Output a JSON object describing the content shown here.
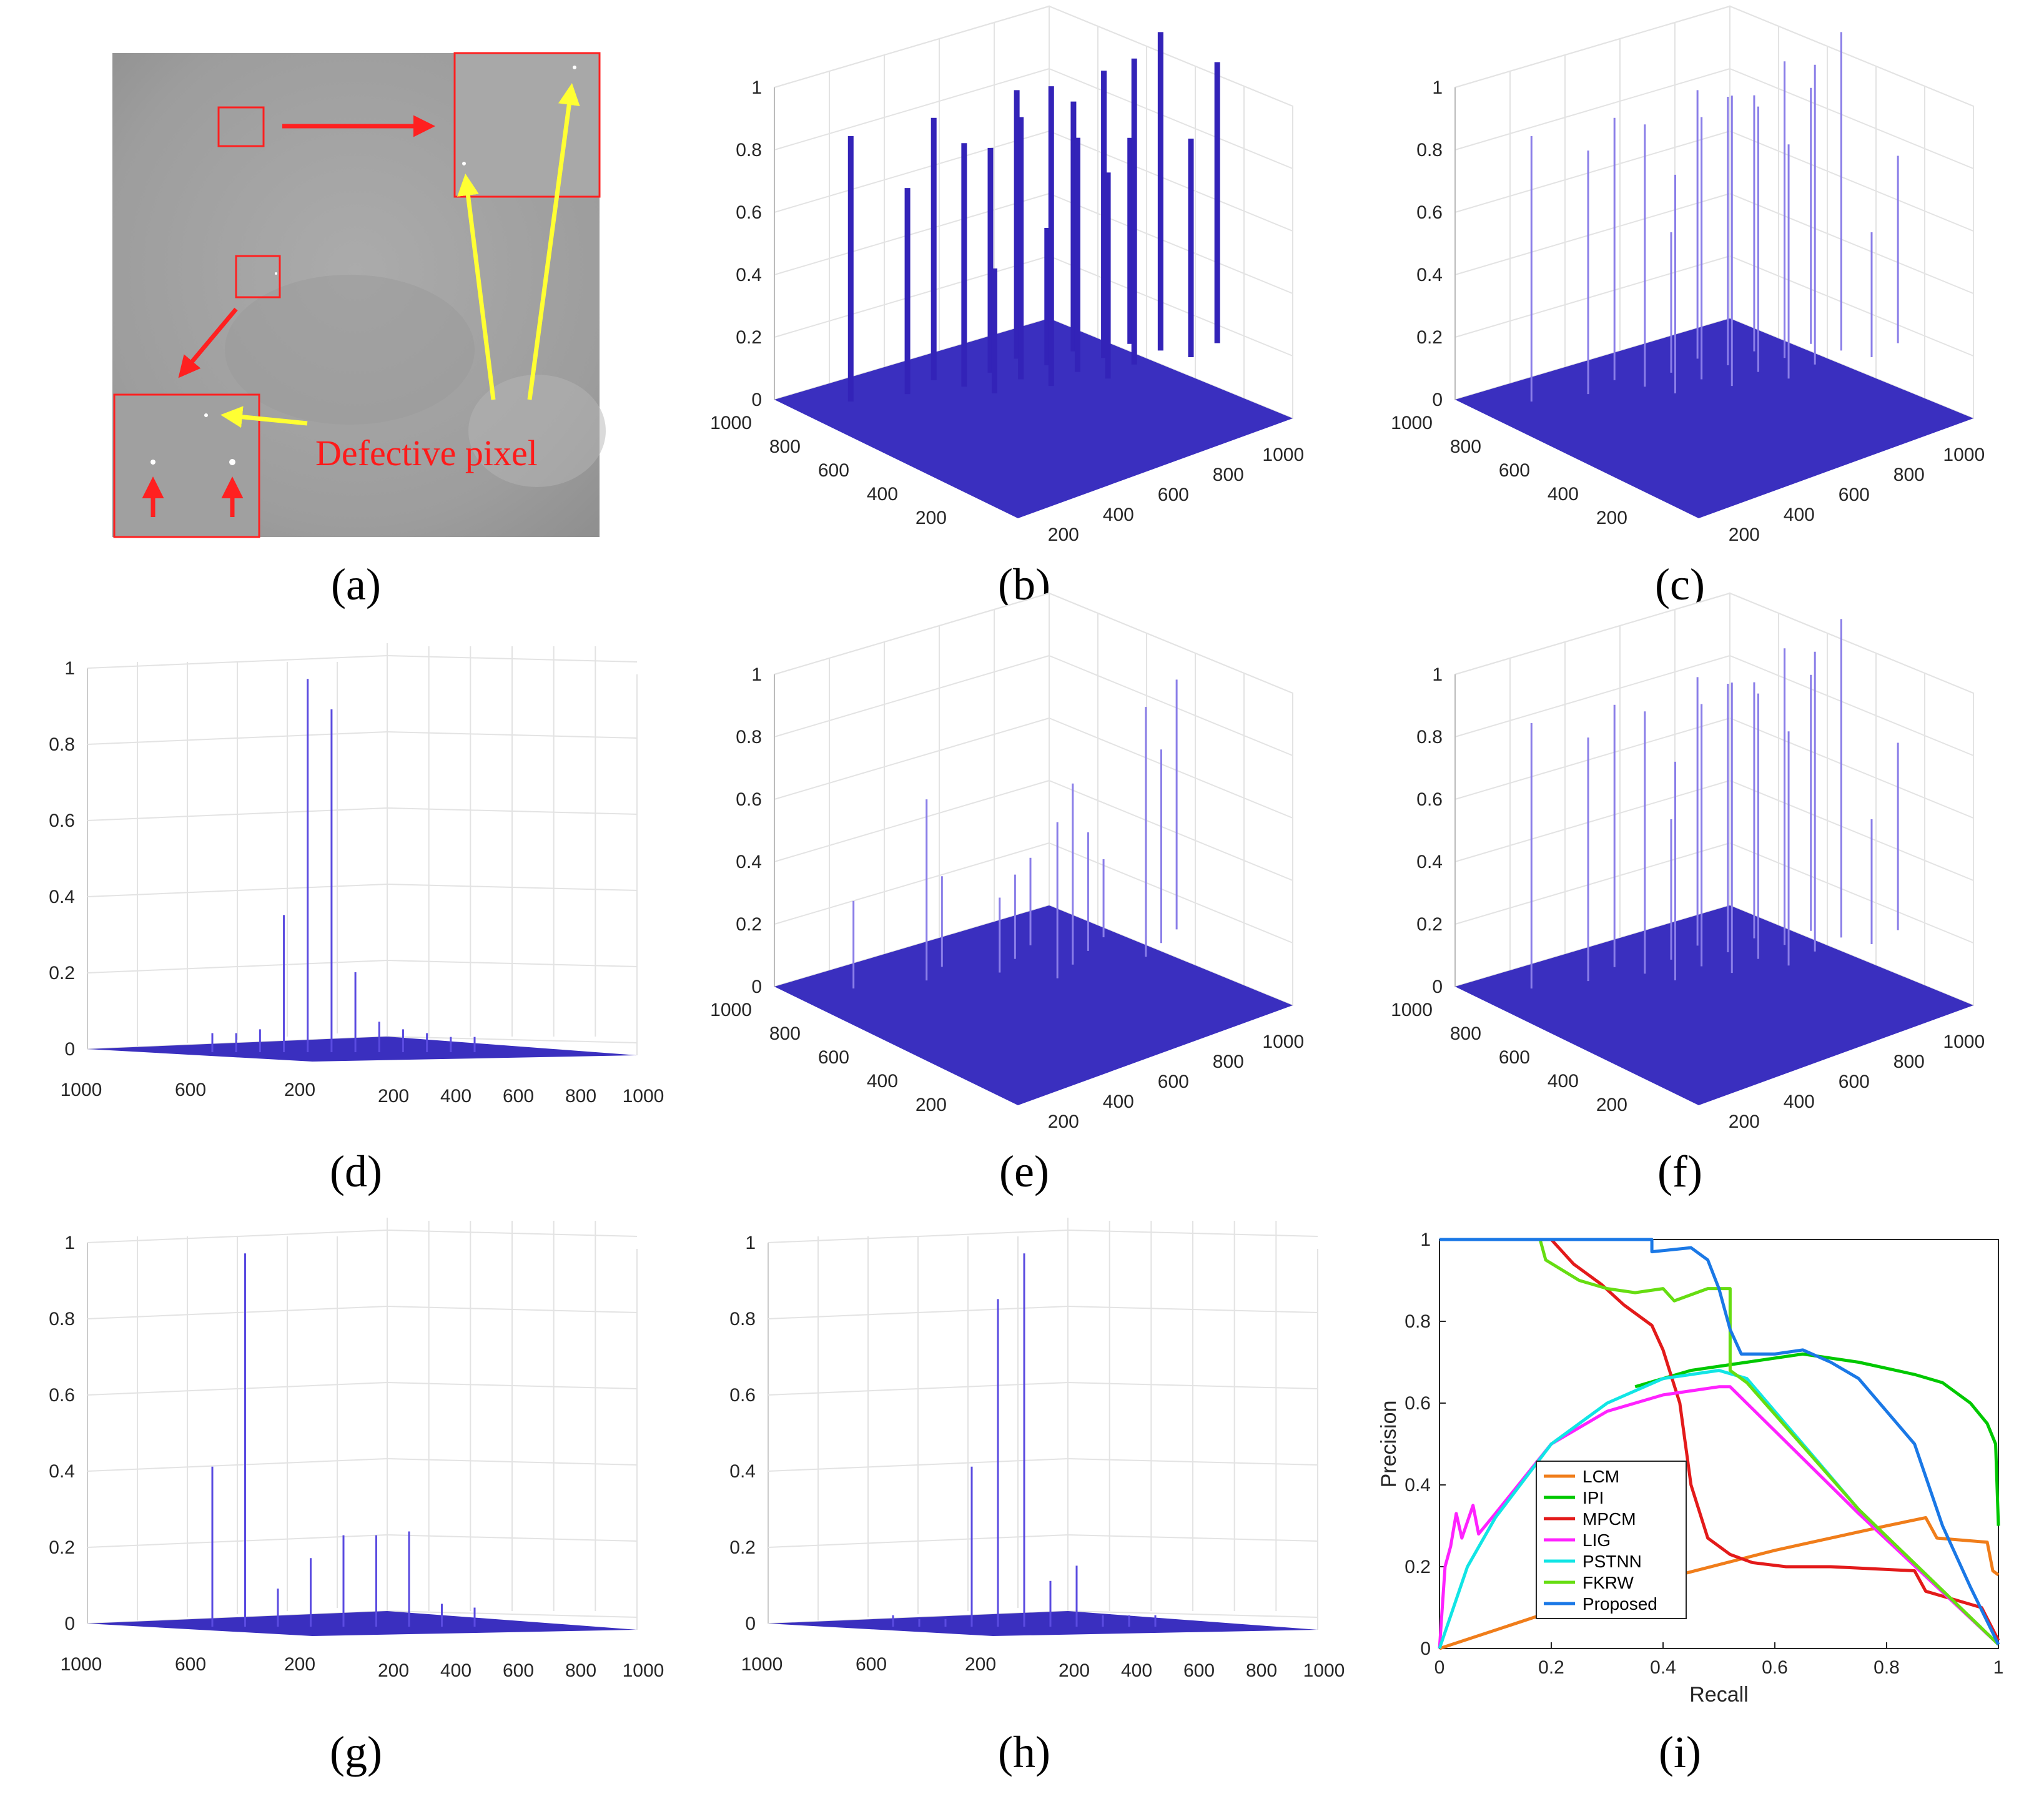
{
  "figure": {
    "annotation": "Defective pixel",
    "colors": {
      "surface": "#3a2fbf",
      "spike": "#4a3cd8",
      "spike_light": "#8a7ee8",
      "annotation_red": "#ff2020",
      "annotation_yellow": "#ffff33",
      "grid": "#e3e3e3",
      "axis": "#262626"
    }
  },
  "chart_data": [
    {
      "id": "a",
      "caption": "(a)",
      "type": "other",
      "annotation": "Defective pixel"
    },
    {
      "id": "b",
      "caption": "(b)",
      "type": "surface3d",
      "zticks": [
        "0",
        "0.2",
        "0.4",
        "0.6",
        "0.8",
        "1"
      ],
      "yticks": [
        "1000",
        "800",
        "600",
        "400",
        "200"
      ],
      "xticks": [
        "200",
        "400",
        "600",
        "800",
        "1000"
      ],
      "spikes": [
        0.85,
        0.84,
        0.86,
        0.66,
        0.72,
        0.8,
        0.78,
        0.44,
        0.66,
        0.84,
        0.92,
        0.4,
        0.75,
        1.02,
        0.96,
        0.98,
        0.9,
        0.66,
        0.7
      ]
    },
    {
      "id": "c",
      "caption": "(c)",
      "type": "surface3d",
      "zticks": [
        "0",
        "0.2",
        "0.4",
        "0.6",
        "0.8",
        "1"
      ],
      "yticks": [
        "1000",
        "800",
        "600",
        "400",
        "200"
      ],
      "xticks": [
        "200",
        "400",
        "600",
        "800",
        "1000"
      ],
      "spikes": [
        0.85,
        0.84,
        0.86,
        0.78,
        0.45,
        0.82,
        0.84,
        0.86,
        0.82,
        0.84,
        0.95,
        0.7,
        0.85,
        1.02,
        0.93,
        0.96,
        0.6,
        0.75,
        0.4
      ]
    },
    {
      "id": "d",
      "caption": "(d)",
      "type": "surface3d",
      "zticks": [
        "0",
        "0.2",
        "0.4",
        "0.6",
        "0.8",
        "1"
      ],
      "yticks": [
        "1000",
        "600",
        "200"
      ],
      "xticks": [
        "200",
        "400",
        "600",
        "800",
        "1000"
      ],
      "spikes": [
        0.05,
        0.05,
        0.06,
        0.36,
        0.98,
        0.9,
        0.21,
        0.08,
        0.06,
        0.05,
        0.04,
        0.04
      ]
    },
    {
      "id": "e",
      "caption": "(e)",
      "type": "surface3d",
      "zticks": [
        "0",
        "0.2",
        "0.4",
        "0.6",
        "0.8",
        "1"
      ],
      "yticks": [
        "1000",
        "800",
        "600",
        "400",
        "200"
      ],
      "xticks": [
        "200",
        "400",
        "600",
        "800",
        "1000"
      ],
      "spikes": [
        0.28,
        0.29,
        0.28,
        0.58,
        0.27,
        0.25,
        0.24,
        0.38,
        0.8,
        0.58,
        0.62,
        0.5,
        0.8
      ]
    },
    {
      "id": "f",
      "caption": "(f)",
      "type": "surface3d",
      "zticks": [
        "0",
        "0.2",
        "0.4",
        "0.6",
        "0.8",
        "1"
      ],
      "yticks": [
        "1000",
        "800",
        "600",
        "400",
        "200"
      ],
      "xticks": [
        "200",
        "400",
        "600",
        "800",
        "1000"
      ],
      "spikes": [
        0.85,
        0.84,
        0.86,
        0.78,
        0.45,
        0.82,
        0.84,
        0.86,
        0.82,
        0.84,
        0.95,
        0.7,
        0.85,
        1.02,
        0.93,
        0.96,
        0.6,
        0.75,
        0.4
      ]
    },
    {
      "id": "g",
      "caption": "(g)",
      "type": "surface3d",
      "zticks": [
        "0",
        "0.2",
        "0.4",
        "0.6",
        "0.8",
        "1"
      ],
      "yticks": [
        "1000",
        "600",
        "200"
      ],
      "xticks": [
        "200",
        "400",
        "600",
        "800",
        "1000"
      ],
      "spikes": [
        0.42,
        0.98,
        0.1,
        0.18,
        0.24,
        0.24,
        0.25,
        0.06,
        0.05
      ]
    },
    {
      "id": "h",
      "caption": "(h)",
      "type": "surface3d",
      "zticks": [
        "0",
        "0.2",
        "0.4",
        "0.6",
        "0.8",
        "1"
      ],
      "yticks": [
        "1000",
        "600",
        "200"
      ],
      "xticks": [
        "200",
        "400",
        "600",
        "800",
        "1000"
      ],
      "spikes": [
        0.03,
        0.02,
        0.02,
        0.42,
        0.86,
        0.98,
        0.12,
        0.16,
        0.03,
        0.03,
        0.03
      ]
    },
    {
      "id": "i",
      "caption": "(i)",
      "type": "line",
      "xlabel": "Recall",
      "ylabel": "Precision",
      "xlim": [
        0,
        1
      ],
      "ylim": [
        0,
        1
      ],
      "xticks": [
        "0",
        "0.2",
        "0.4",
        "0.6",
        "0.8",
        "1"
      ],
      "yticks": [
        "0",
        "0.2",
        "0.4",
        "0.6",
        "0.8",
        "1"
      ],
      "legend_position": "bottom-left",
      "series": [
        {
          "name": "LCM",
          "color": "#f07d1a",
          "points": [
            [
              0,
              0
            ],
            [
              0.2,
              0.09
            ],
            [
              0.4,
              0.17
            ],
            [
              0.6,
              0.24
            ],
            [
              0.8,
              0.3
            ],
            [
              0.87,
              0.32
            ],
            [
              0.89,
              0.27
            ],
            [
              0.98,
              0.26
            ],
            [
              0.99,
              0.19
            ],
            [
              1,
              0.18
            ]
          ]
        },
        {
          "name": "IPI",
          "color": "#00c800",
          "points": [
            [
              0.35,
              0.64
            ],
            [
              0.45,
              0.68
            ],
            [
              0.55,
              0.7
            ],
            [
              0.65,
              0.72
            ],
            [
              0.75,
              0.7
            ],
            [
              0.85,
              0.67
            ],
            [
              0.9,
              0.65
            ],
            [
              0.95,
              0.6
            ],
            [
              0.98,
              0.55
            ],
            [
              0.995,
              0.5
            ],
            [
              1,
              0.3
            ]
          ]
        },
        {
          "name": "MPCM",
          "color": "#e31a1a",
          "points": [
            [
              0.2,
              1
            ],
            [
              0.24,
              0.94
            ],
            [
              0.29,
              0.89
            ],
            [
              0.33,
              0.84
            ],
            [
              0.38,
              0.79
            ],
            [
              0.4,
              0.73
            ],
            [
              0.43,
              0.6
            ],
            [
              0.45,
              0.4
            ],
            [
              0.48,
              0.27
            ],
            [
              0.52,
              0.23
            ],
            [
              0.56,
              0.21
            ],
            [
              0.62,
              0.2
            ],
            [
              0.7,
              0.2
            ],
            [
              0.85,
              0.19
            ],
            [
              0.87,
              0.14
            ],
            [
              0.92,
              0.12
            ],
            [
              0.97,
              0.1
            ],
            [
              1,
              0.02
            ]
          ]
        },
        {
          "name": "LIG",
          "color": "#ff22ff",
          "points": [
            [
              0,
              0
            ],
            [
              0.01,
              0.2
            ],
            [
              0.02,
              0.25
            ],
            [
              0.03,
              0.33
            ],
            [
              0.04,
              0.27
            ],
            [
              0.06,
              0.35
            ],
            [
              0.07,
              0.28
            ],
            [
              0.1,
              0.33
            ],
            [
              0.2,
              0.5
            ],
            [
              0.3,
              0.58
            ],
            [
              0.4,
              0.62
            ],
            [
              0.5,
              0.64
            ],
            [
              0.52,
              0.64
            ],
            [
              0.75,
              0.33
            ],
            [
              1,
              0.01
            ]
          ]
        },
        {
          "name": "PSTNN",
          "color": "#11e5e5",
          "points": [
            [
              0,
              0
            ],
            [
              0.05,
              0.2
            ],
            [
              0.1,
              0.32
            ],
            [
              0.2,
              0.5
            ],
            [
              0.3,
              0.6
            ],
            [
              0.4,
              0.66
            ],
            [
              0.5,
              0.68
            ],
            [
              0.55,
              0.66
            ],
            [
              0.75,
              0.34
            ],
            [
              1,
              0.01
            ]
          ]
        },
        {
          "name": "FKRW",
          "color": "#66dd11",
          "points": [
            [
              0.18,
              1
            ],
            [
              0.19,
              0.95
            ],
            [
              0.25,
              0.9
            ],
            [
              0.3,
              0.88
            ],
            [
              0.35,
              0.87
            ],
            [
              0.4,
              0.88
            ],
            [
              0.42,
              0.85
            ],
            [
              0.48,
              0.88
            ],
            [
              0.52,
              0.88
            ],
            [
              0.52,
              0.68
            ],
            [
              0.55,
              0.65
            ],
            [
              0.75,
              0.34
            ],
            [
              1,
              0.01
            ]
          ]
        },
        {
          "name": "Proposed",
          "color": "#1a78e6",
          "points": [
            [
              0,
              1
            ],
            [
              0.38,
              1
            ],
            [
              0.38,
              0.97
            ],
            [
              0.45,
              0.98
            ],
            [
              0.48,
              0.95
            ],
            [
              0.5,
              0.88
            ],
            [
              0.52,
              0.78
            ],
            [
              0.54,
              0.72
            ],
            [
              0.6,
              0.72
            ],
            [
              0.65,
              0.73
            ],
            [
              0.7,
              0.7
            ],
            [
              0.75,
              0.66
            ],
            [
              0.8,
              0.58
            ],
            [
              0.85,
              0.5
            ],
            [
              0.9,
              0.3
            ],
            [
              0.95,
              0.15
            ],
            [
              1,
              0.01
            ]
          ]
        }
      ]
    }
  ]
}
